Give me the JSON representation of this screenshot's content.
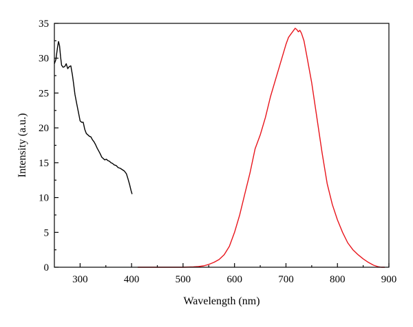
{
  "chart_data": {
    "type": "line",
    "title": "",
    "xlabel": "Wavelength (nm)",
    "ylabel": "Intensity (a.u.)",
    "xlim": [
      250,
      900
    ],
    "ylim": [
      0,
      35
    ],
    "x_ticks": [
      300,
      400,
      500,
      600,
      700,
      800,
      900
    ],
    "y_ticks": [
      0,
      5,
      10,
      15,
      20,
      25,
      30,
      35
    ],
    "grid": false,
    "legend": "none",
    "series": [
      {
        "color": "#000000",
        "x": [
          250,
          253,
          256,
          258,
          260,
          262,
          264,
          267,
          270,
          273,
          276,
          279,
          282,
          285,
          287,
          290,
          293,
          296,
          300,
          303,
          306,
          309,
          312,
          315,
          318,
          321,
          324,
          327,
          330,
          333,
          336,
          339,
          342,
          345,
          348,
          351,
          354,
          357,
          360,
          363,
          366,
          370,
          374,
          378,
          382,
          386,
          390,
          393,
          396,
          399,
          401
        ],
        "y": [
          29.2,
          29.8,
          31.5,
          32.4,
          31.8,
          30.2,
          29.0,
          28.7,
          28.8,
          29.2,
          28.5,
          28.8,
          28.9,
          27.6,
          26.5,
          24.8,
          23.6,
          22.5,
          21.0,
          20.8,
          20.8,
          19.8,
          19.2,
          19.0,
          18.8,
          18.7,
          18.3,
          18.0,
          17.6,
          17.1,
          16.7,
          16.3,
          15.8,
          15.6,
          15.4,
          15.5,
          15.3,
          15.2,
          15.0,
          14.9,
          14.7,
          14.6,
          14.3,
          14.2,
          14.0,
          13.8,
          13.4,
          12.7,
          11.9,
          11.0,
          10.5
        ]
      },
      {
        "color": "#e8141b",
        "x": [
          412,
          440,
          470,
          500,
          520,
          530,
          540,
          550,
          560,
          570,
          580,
          590,
          600,
          610,
          620,
          630,
          640,
          650,
          660,
          670,
          680,
          690,
          700,
          705,
          710,
          715,
          718,
          721,
          724,
          727,
          730,
          735,
          740,
          750,
          760,
          770,
          780,
          790,
          800,
          810,
          820,
          830,
          840,
          850,
          860,
          870,
          878,
          885,
          892
        ],
        "y": [
          0,
          0,
          0,
          0,
          0.05,
          0.1,
          0.2,
          0.4,
          0.7,
          1.1,
          1.8,
          3.0,
          5.0,
          7.5,
          10.5,
          13.5,
          17.0,
          19.0,
          21.5,
          24.5,
          27.0,
          29.5,
          32.0,
          33.0,
          33.5,
          34.0,
          34.3,
          34.1,
          33.8,
          34.0,
          33.6,
          32.5,
          30.5,
          26.5,
          21.5,
          16.5,
          12.0,
          9.0,
          6.8,
          5.0,
          3.5,
          2.5,
          1.8,
          1.2,
          0.7,
          0.3,
          0.1,
          0,
          0
        ]
      }
    ]
  }
}
